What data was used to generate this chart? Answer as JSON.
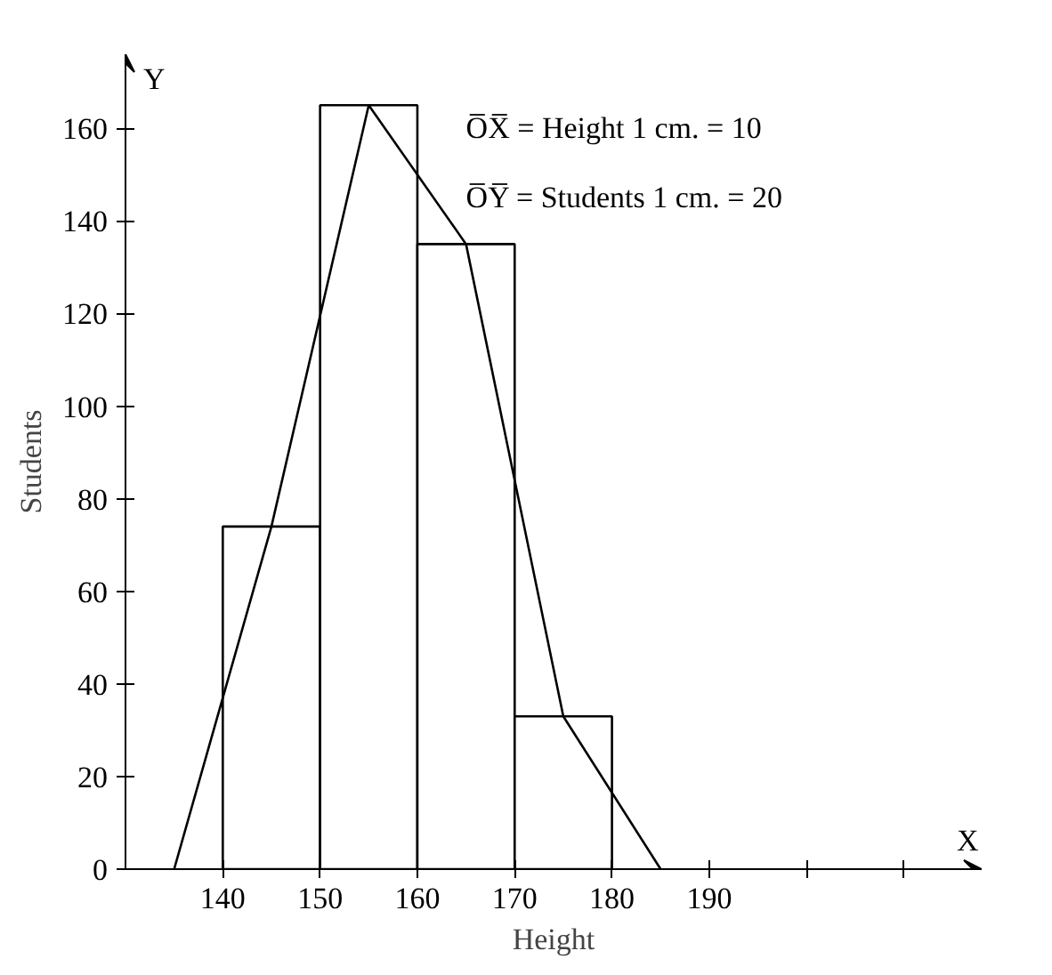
{
  "chart_data": {
    "type": "histogram",
    "xlabel": "Height",
    "ylabel": "Students",
    "bins": [
      140,
      150,
      160,
      170,
      180
    ],
    "values": [
      74,
      165,
      135,
      33
    ],
    "color": "#ffffff",
    "series": [
      {
        "type": "line",
        "color": "#000000",
        "x": [
          135,
          145,
          155,
          165,
          175,
          185
        ],
        "values": [
          0,
          74,
          165,
          135,
          33,
          0
        ]
      }
    ],
    "xlim": [
      130,
      218
    ],
    "ylim": [
      0,
      176
    ],
    "xticks": [
      140,
      150,
      160,
      170,
      180,
      190,
      {
        "value": 200,
        "label": null
      },
      {
        "value": 210,
        "label": null
      }
    ],
    "yticks": [
      0,
      20,
      40,
      60,
      80,
      100,
      120,
      140,
      160
    ],
    "grid": false,
    "annotations": [
      "O̅X̅ = Height 1 cm. = 10",
      "O̅Y̅ = Students 1 cm. = 20",
      "X",
      "Y"
    ]
  }
}
